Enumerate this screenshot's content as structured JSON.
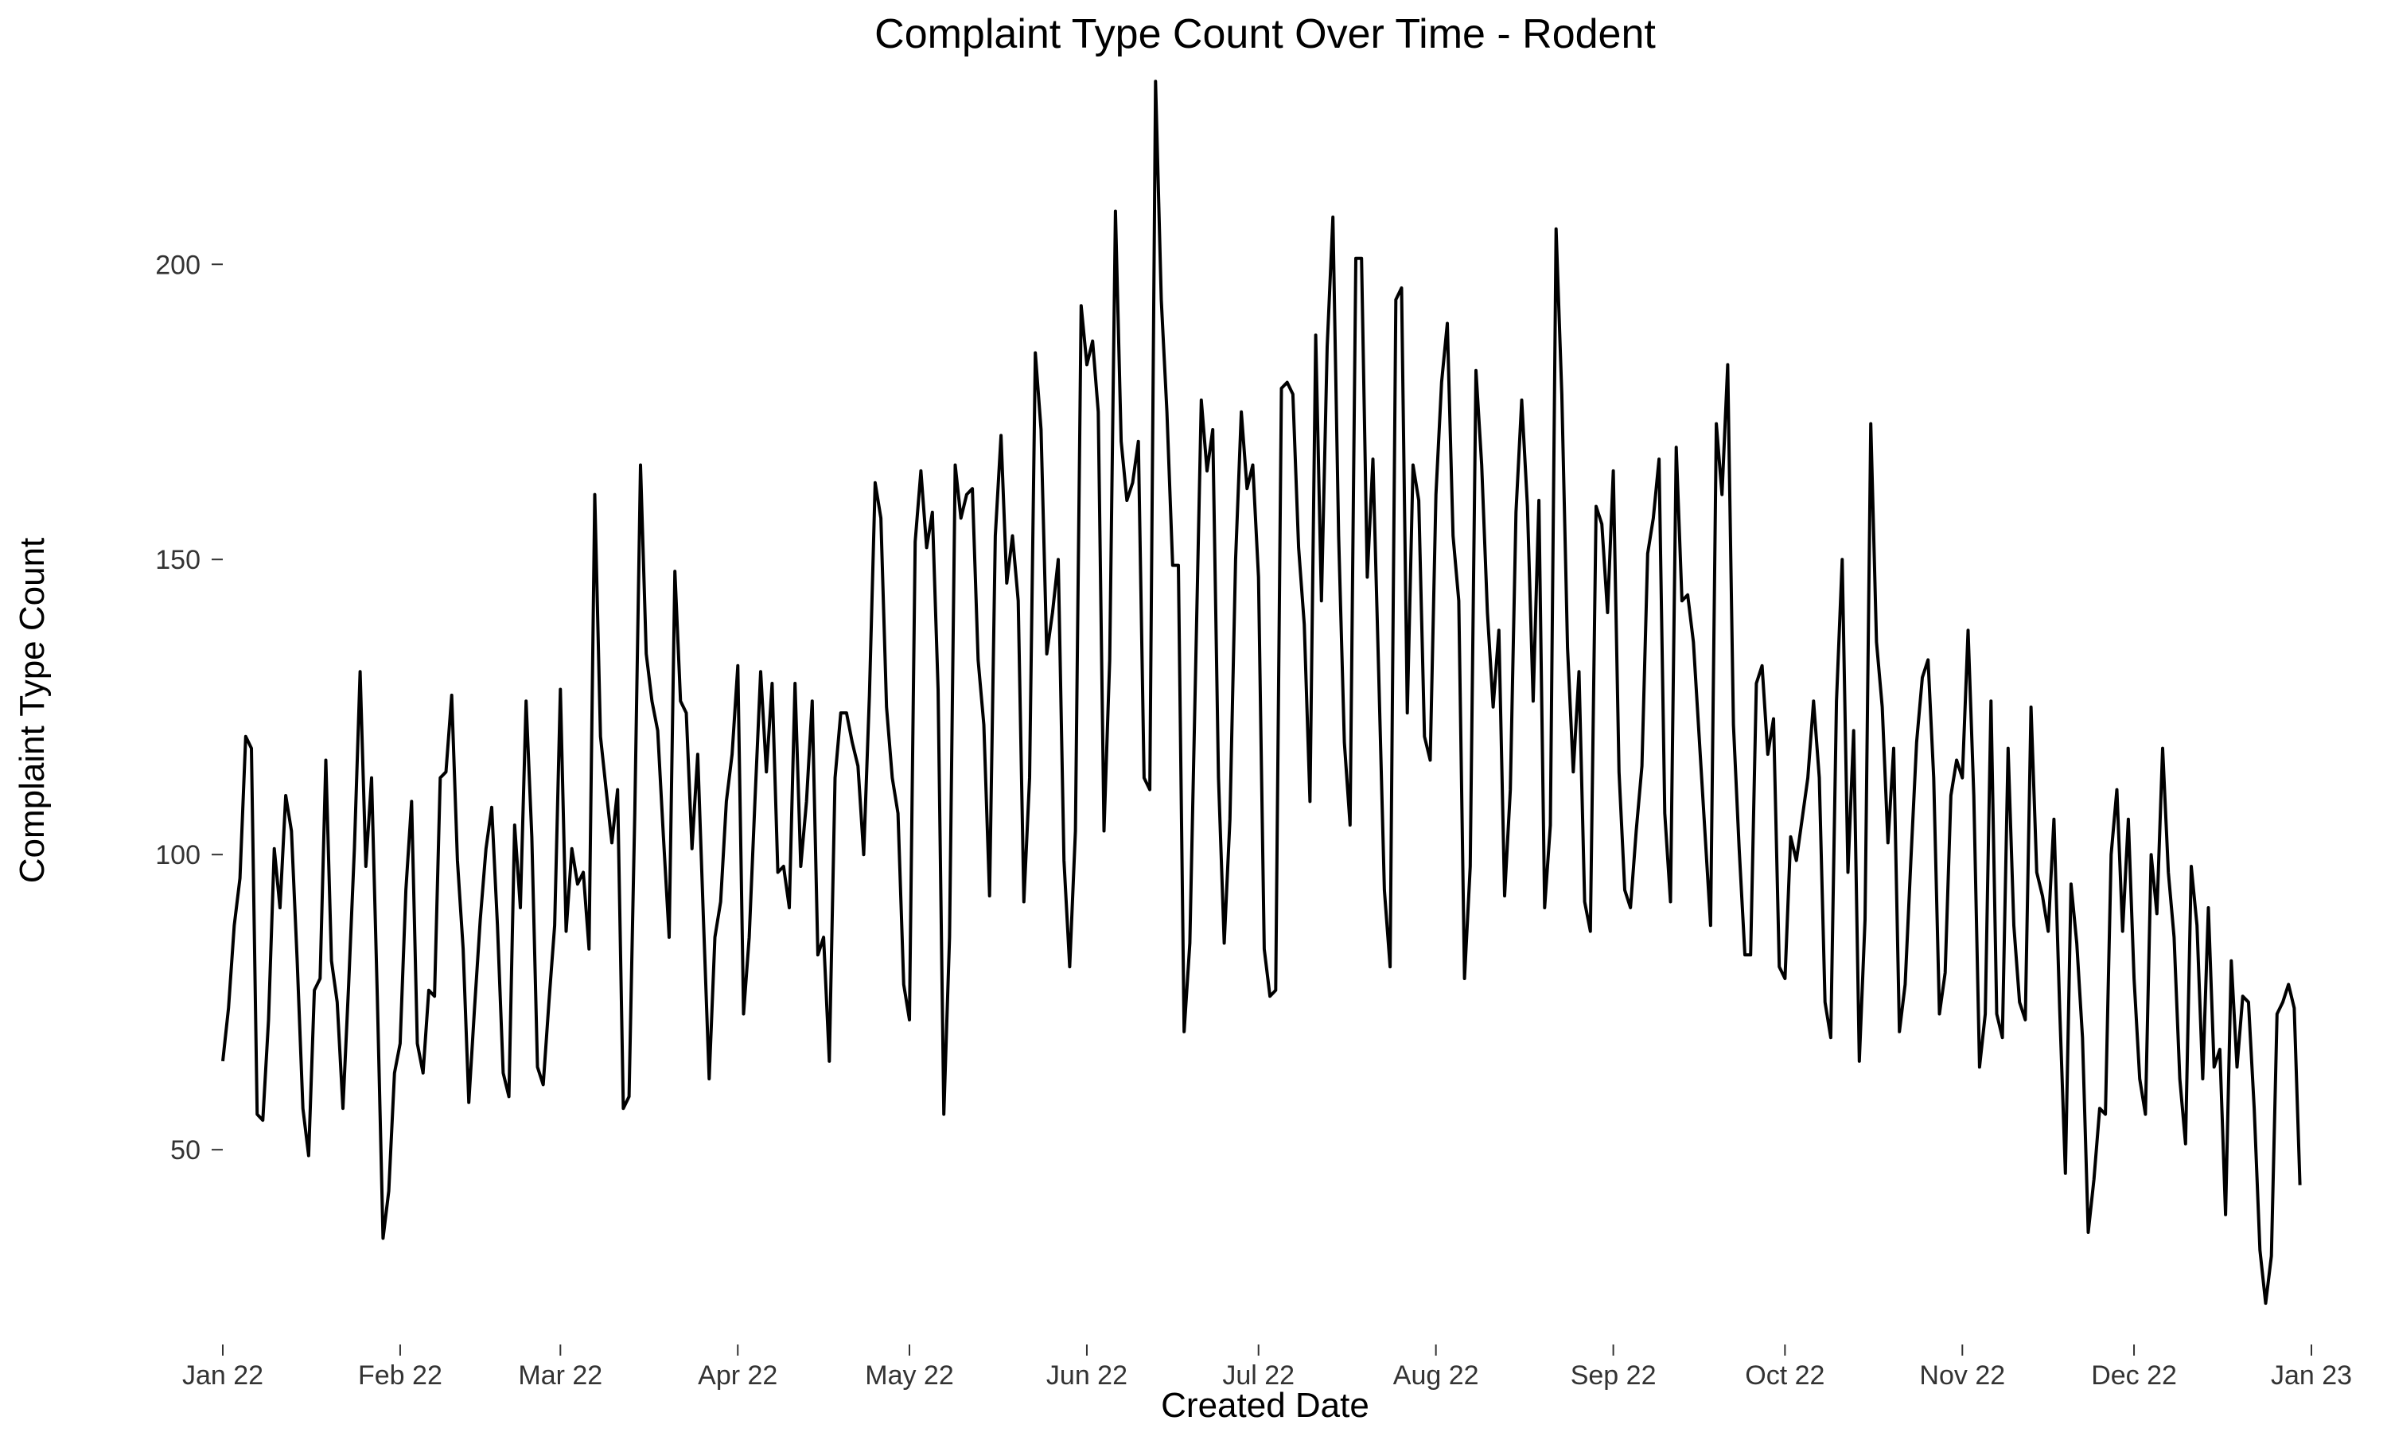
{
  "chart_data": {
    "type": "line",
    "title": "Complaint Type Count Over Time - Rodent",
    "xlabel": "Created Date",
    "ylabel": "Complaint Type Count",
    "x_start": "2022-01-01",
    "x_end": "2022-12-31",
    "xlim": [
      "2022-01-01",
      "2023-01-01"
    ],
    "ylim": [
      17,
      234
    ],
    "grid": false,
    "x_ticks": [
      {
        "date": "2022-01-01",
        "label": "Jan 22"
      },
      {
        "date": "2022-02-01",
        "label": "Feb 22"
      },
      {
        "date": "2022-03-01",
        "label": "Mar 22"
      },
      {
        "date": "2022-04-01",
        "label": "Apr 22"
      },
      {
        "date": "2022-05-01",
        "label": "May 22"
      },
      {
        "date": "2022-06-01",
        "label": "Jun 22"
      },
      {
        "date": "2022-07-01",
        "label": "Jul 22"
      },
      {
        "date": "2022-08-01",
        "label": "Aug 22"
      },
      {
        "date": "2022-09-01",
        "label": "Sep 22"
      },
      {
        "date": "2022-10-01",
        "label": "Oct 22"
      },
      {
        "date": "2022-11-01",
        "label": "Nov 22"
      },
      {
        "date": "2022-12-01",
        "label": "Dec 22"
      },
      {
        "date": "2023-01-01",
        "label": "Jan 23"
      }
    ],
    "y_ticks": [
      {
        "value": 50,
        "label": "50"
      },
      {
        "value": 100,
        "label": "100"
      },
      {
        "value": 150,
        "label": "150"
      },
      {
        "value": 200,
        "label": "200"
      }
    ],
    "series": [
      {
        "values": [
          65,
          74,
          88,
          96,
          120,
          118,
          56,
          55,
          72,
          101,
          91,
          110,
          104,
          82,
          57,
          49,
          77,
          79,
          116,
          82,
          75,
          57,
          78,
          101,
          131,
          98,
          113,
          76,
          35,
          43,
          63,
          68,
          94,
          109,
          68,
          63,
          77,
          76,
          113,
          114,
          127,
          99,
          84,
          58,
          74,
          89,
          101,
          108,
          88,
          63,
          59,
          105,
          91,
          126,
          103,
          64,
          61,
          75,
          88,
          128,
          87,
          101,
          95,
          97,
          84,
          161,
          120,
          111,
          102,
          111,
          57,
          59,
          107,
          166,
          134,
          126,
          121,
          103,
          86,
          148,
          126,
          124,
          101,
          117,
          89,
          62,
          86,
          92,
          109,
          117,
          132,
          73,
          86,
          109,
          131,
          114,
          129,
          97,
          98,
          91,
          129,
          98,
          109,
          126,
          83,
          86,
          65,
          113,
          124,
          124,
          119,
          115,
          100,
          127,
          163,
          157,
          125,
          113,
          107,
          78,
          72,
          153,
          165,
          152,
          158,
          128,
          56,
          86,
          166,
          157,
          161,
          162,
          133,
          122,
          93,
          154,
          171,
          146,
          154,
          143,
          92,
          113,
          185,
          172,
          134,
          141,
          150,
          99,
          81,
          104,
          193,
          183,
          187,
          175,
          104,
          133,
          209,
          170,
          160,
          163,
          170,
          113,
          111,
          231,
          194,
          175,
          149,
          149,
          70,
          85,
          131,
          177,
          165,
          172,
          113,
          85,
          106,
          150,
          175,
          162,
          166,
          147,
          84,
          76,
          77,
          179,
          180,
          178,
          152,
          139,
          109,
          188,
          143,
          186,
          208,
          154,
          119,
          105,
          201,
          201,
          147,
          167,
          131,
          94,
          81,
          194,
          196,
          124,
          166,
          160,
          120,
          116,
          161,
          180,
          190,
          154,
          143,
          79,
          98,
          182,
          166,
          141,
          125,
          138,
          93,
          111,
          158,
          177,
          159,
          126,
          160,
          91,
          105,
          206,
          178,
          135,
          114,
          131,
          92,
          87,
          159,
          156,
          141,
          165,
          114,
          94,
          91,
          104,
          115,
          151,
          157,
          167,
          107,
          92,
          169,
          143,
          144,
          136,
          120,
          104,
          88,
          173,
          161,
          183,
          122,
          101,
          83,
          83,
          129,
          132,
          117,
          123,
          81,
          79,
          103,
          99,
          106,
          113,
          126,
          113,
          75,
          69,
          126,
          150,
          97,
          121,
          65,
          89,
          173,
          136,
          125,
          102,
          118,
          70,
          78,
          99,
          119,
          130,
          133,
          113,
          73,
          80,
          110,
          116,
          113,
          138,
          110,
          64,
          73,
          126,
          73,
          69,
          118,
          88,
          75,
          72,
          125,
          97,
          93,
          87,
          106,
          74,
          46,
          95,
          85,
          69,
          36,
          45,
          57,
          56,
          100,
          111,
          87,
          106,
          79,
          62,
          56,
          100,
          90,
          118,
          97,
          86,
          62,
          51,
          98,
          88,
          62,
          91,
          64,
          67,
          39,
          82,
          64,
          76,
          75,
          57,
          33,
          24,
          32,
          73,
          75,
          78,
          74,
          44
        ]
      }
    ]
  }
}
